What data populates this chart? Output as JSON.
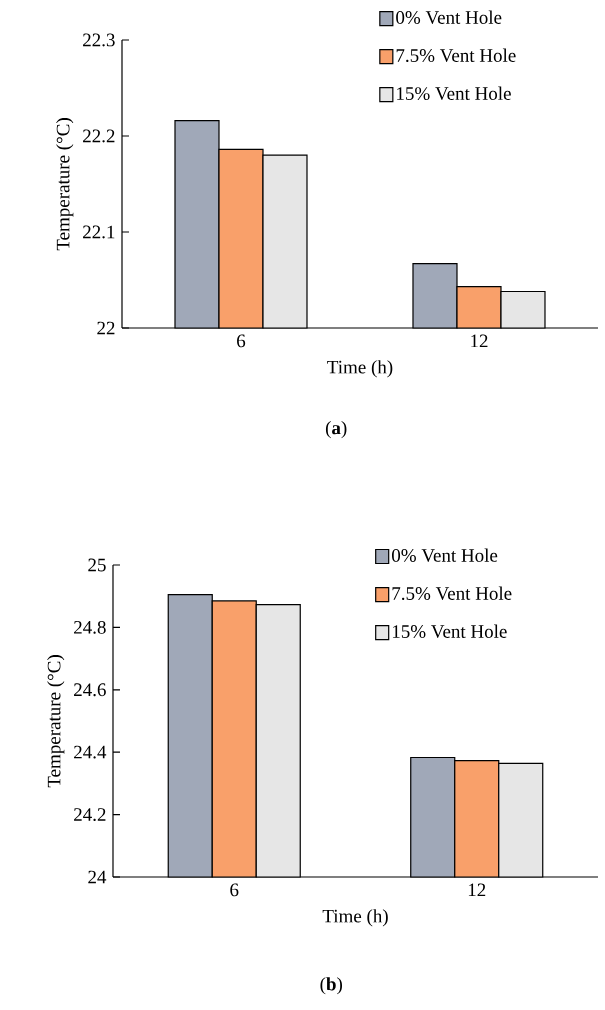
{
  "chart_data": [
    {
      "type": "bar",
      "xlabel": "Time (h)",
      "ylabel": "Temperature (°C)",
      "categories": [
        "6",
        "12"
      ],
      "ylim": [
        22,
        22.3
      ],
      "yticks": [
        22,
        22.1,
        22.2,
        22.3
      ],
      "legend": "top right",
      "grid": false,
      "annotations": [
        "(**a**)"
      ],
      "series": [
        {
          "name": "0% Vent Hole",
          "color": "#a0a8b8",
          "values": [
            22.216,
            22.067
          ]
        },
        {
          "name": "7.5% Vent Hole",
          "color": "#f9a06a",
          "values": [
            22.186,
            22.043
          ]
        },
        {
          "name": "15% Vent Hole",
          "color": "#e6e6e6",
          "values": [
            22.18,
            22.038
          ]
        }
      ]
    },
    {
      "type": "bar",
      "xlabel": "Time (h)",
      "ylabel": "Temperature (°C)",
      "categories": [
        "6",
        "12"
      ],
      "ylim": [
        24,
        25
      ],
      "yticks": [
        24,
        24.2,
        24.4,
        24.6,
        24.8,
        25
      ],
      "legend": "top right",
      "grid": false,
      "annotations": [
        "(**b**)"
      ],
      "series": [
        {
          "name": "0% Vent Hole",
          "color": "#a0a8b8",
          "values": [
            24.905,
            24.383
          ]
        },
        {
          "name": "7.5% Vent Hole",
          "color": "#f9a06a",
          "values": [
            24.885,
            24.373
          ]
        },
        {
          "name": "15% Vent Hole",
          "color": "#e6e6e6",
          "values": [
            24.873,
            24.364
          ]
        }
      ]
    }
  ]
}
